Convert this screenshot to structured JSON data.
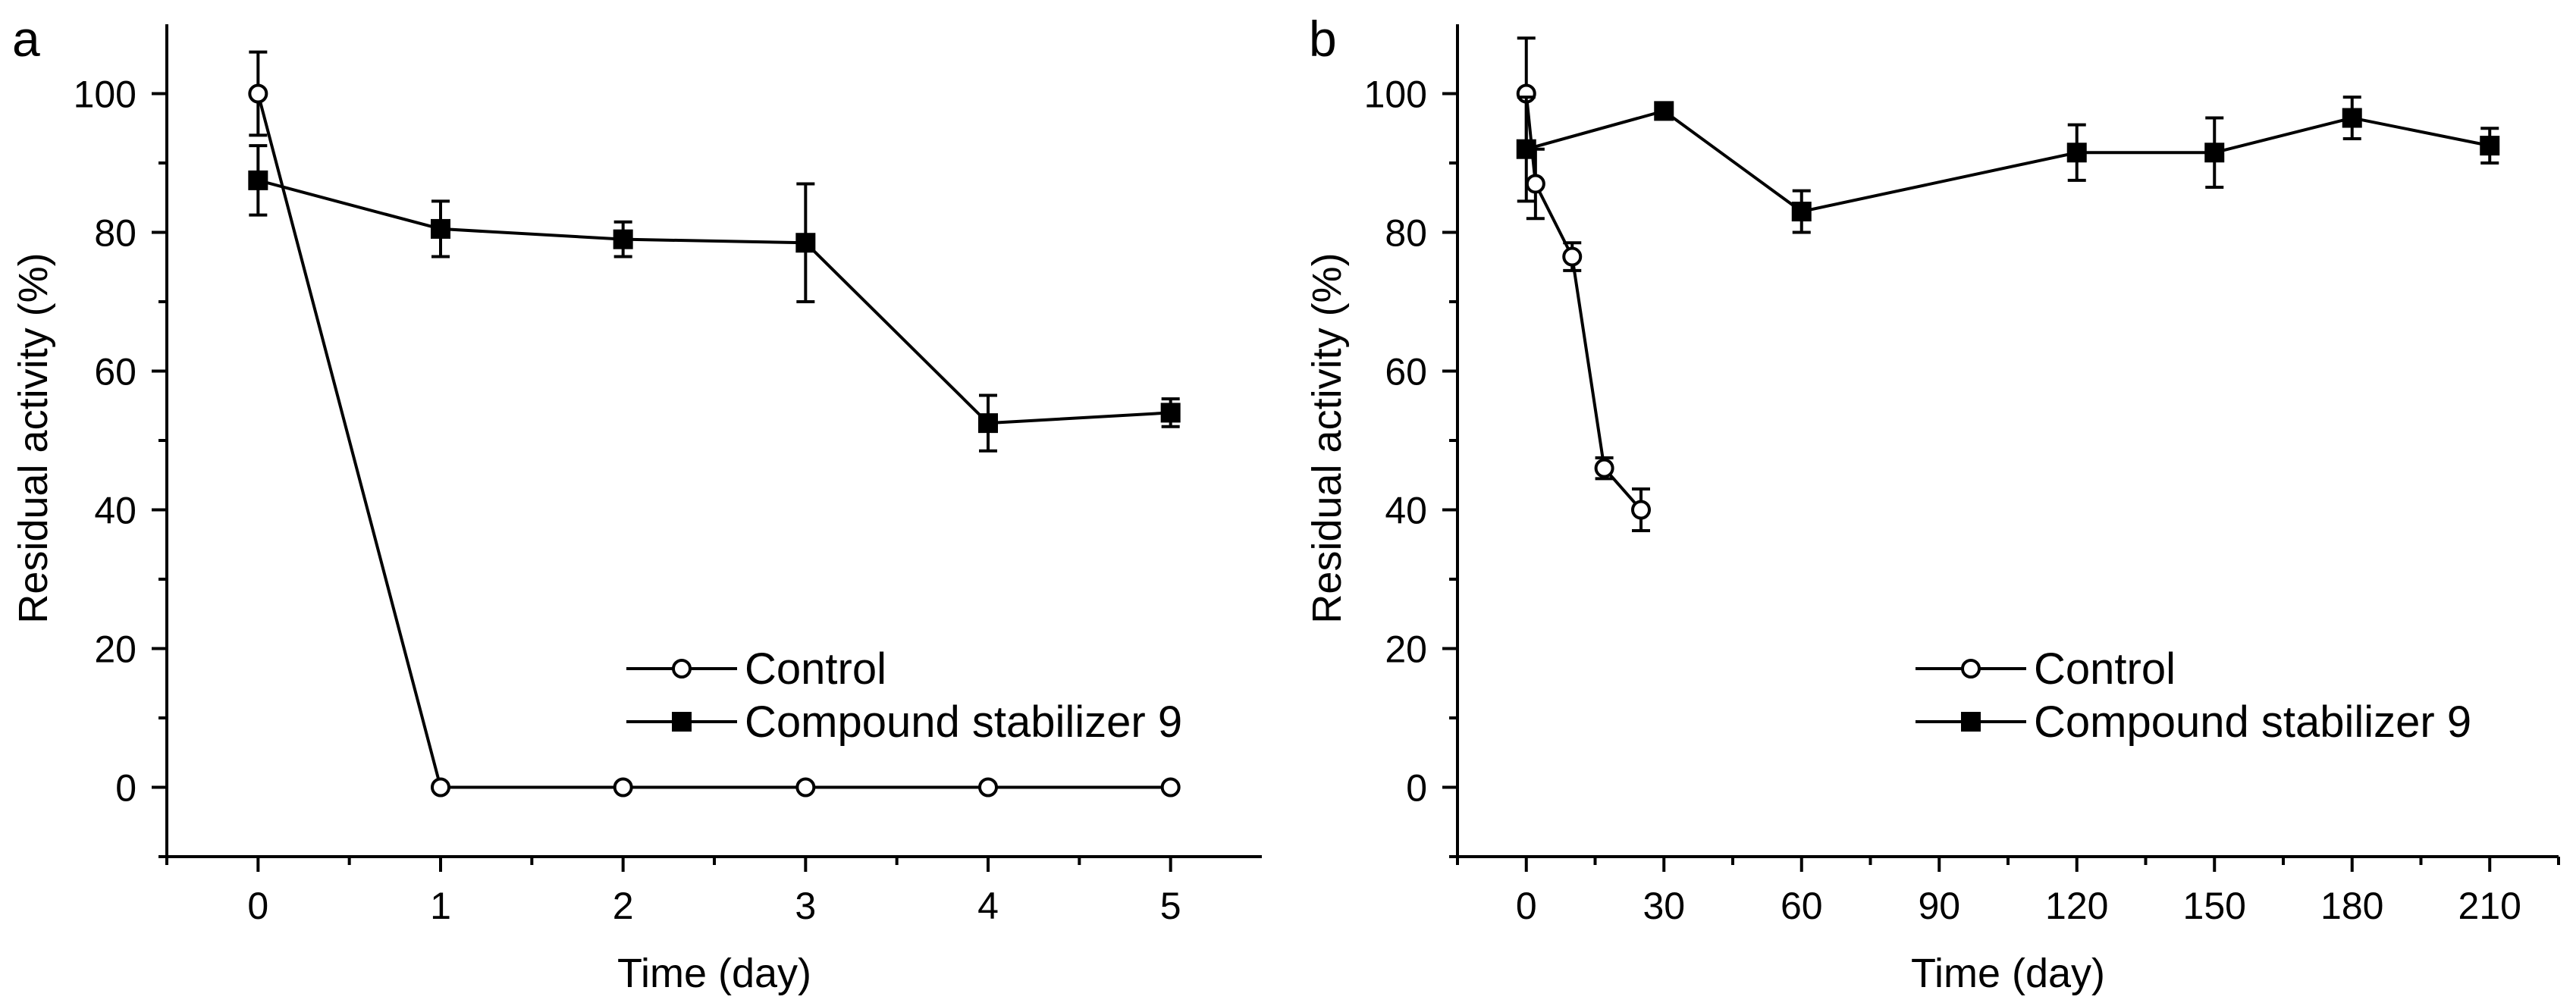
{
  "chart_data": [
    {
      "type": "line",
      "panel_label": "a",
      "title": "",
      "xlabel": "Time (day)",
      "ylabel": "Residual activity (%)",
      "xlim": [
        -0.5,
        5.5
      ],
      "ylim": [
        -10,
        110
      ],
      "x_ticks": [
        0,
        1,
        2,
        3,
        4,
        5
      ],
      "x_tick_labels": [
        "0",
        "1",
        "2",
        "3",
        "4",
        "5"
      ],
      "x_minor_ticks": [
        -0.5,
        0.5,
        1.5,
        2.5,
        3.5,
        4.5
      ],
      "y_ticks": [
        0,
        20,
        40,
        60,
        80,
        100
      ],
      "y_tick_labels": [
        "0",
        "20",
        "40",
        "60",
        "80",
        "100"
      ],
      "y_minor_ticks": [
        -10,
        10,
        30,
        50,
        70,
        90
      ],
      "grid": false,
      "legend_position": "bottom-right",
      "series": [
        {
          "name": "Control",
          "marker": "open-circle",
          "x": [
            0,
            1,
            2,
            3,
            4,
            5
          ],
          "values": [
            100,
            0,
            0,
            0,
            0,
            0
          ],
          "error": [
            6,
            0,
            0,
            0,
            0,
            0
          ]
        },
        {
          "name": "Compound stabilizer 9",
          "marker": "filled-square",
          "x": [
            0,
            1,
            2,
            3,
            4,
            5
          ],
          "values": [
            87.5,
            80.5,
            79,
            78.5,
            52.5,
            54
          ],
          "error": [
            5,
            4,
            2.5,
            8.5,
            4,
            2
          ]
        }
      ]
    },
    {
      "type": "line",
      "panel_label": "b",
      "title": "",
      "xlabel": "Time (day)",
      "ylabel": "Residual activity (%)",
      "xlim": [
        -15,
        225
      ],
      "ylim": [
        -10,
        110
      ],
      "x_ticks": [
        0,
        30,
        60,
        90,
        120,
        150,
        180,
        210
      ],
      "x_tick_labels": [
        "0",
        "30",
        "60",
        "90",
        "120",
        "150",
        "180",
        "210"
      ],
      "x_minor_ticks": [
        -15,
        15,
        45,
        75,
        105,
        135,
        165,
        195,
        225
      ],
      "y_ticks": [
        0,
        20,
        40,
        60,
        80,
        100
      ],
      "y_tick_labels": [
        "0",
        "20",
        "40",
        "60",
        "80",
        "100"
      ],
      "y_minor_ticks": [
        -10,
        10,
        30,
        50,
        70,
        90
      ],
      "grid": false,
      "legend_position": "bottom-right",
      "series": [
        {
          "name": "Control",
          "marker": "open-circle",
          "x": [
            0,
            2,
            10,
            17,
            25
          ],
          "values": [
            100,
            87,
            76.5,
            46,
            40
          ],
          "error": [
            8,
            5,
            2,
            1.5,
            3
          ]
        },
        {
          "name": "Compound stabilizer 9",
          "marker": "filled-square",
          "x": [
            0,
            30,
            60,
            120,
            150,
            180,
            210
          ],
          "values": [
            92,
            97.5,
            83,
            91.5,
            91.5,
            96.5,
            92.5
          ],
          "error": [
            7.5,
            1,
            3,
            4,
            5,
            3,
            2.5
          ]
        }
      ]
    }
  ]
}
